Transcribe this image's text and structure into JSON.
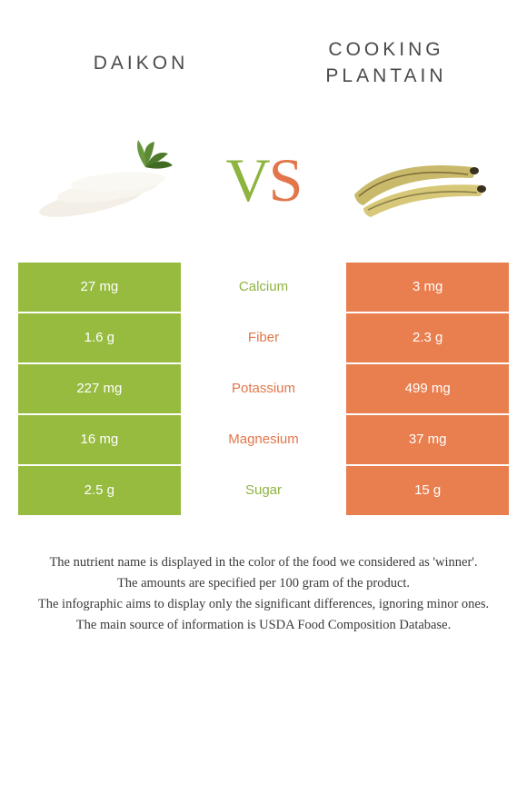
{
  "colors": {
    "left": "#96bb3f",
    "right": "#e97e4f",
    "left_text": "#8eb440",
    "right_text": "#e2764a"
  },
  "header": {
    "left_title": "DAIKON",
    "right_title": "COOKING PLANTAIN"
  },
  "vs": {
    "v": "V",
    "s": "S"
  },
  "rows": [
    {
      "left": "27 mg",
      "label": "Calcium",
      "right": "3 mg",
      "winner": "left"
    },
    {
      "left": "1.6 g",
      "label": "Fiber",
      "right": "2.3 g",
      "winner": "right"
    },
    {
      "left": "227 mg",
      "label": "Potassium",
      "right": "499 mg",
      "winner": "right"
    },
    {
      "left": "16 mg",
      "label": "Magnesium",
      "right": "37 mg",
      "winner": "right"
    },
    {
      "left": "2.5 g",
      "label": "Sugar",
      "right": "15 g",
      "winner": "left"
    }
  ],
  "footer": {
    "line1": "The nutrient name is displayed in the color of the food we considered as 'winner'.",
    "line2": "The amounts are specified per 100 gram of the product.",
    "line3": "The infographic aims to display only the significant differences, ignoring minor ones.",
    "line4": "The main source of information is USDA Food Composition Database."
  }
}
